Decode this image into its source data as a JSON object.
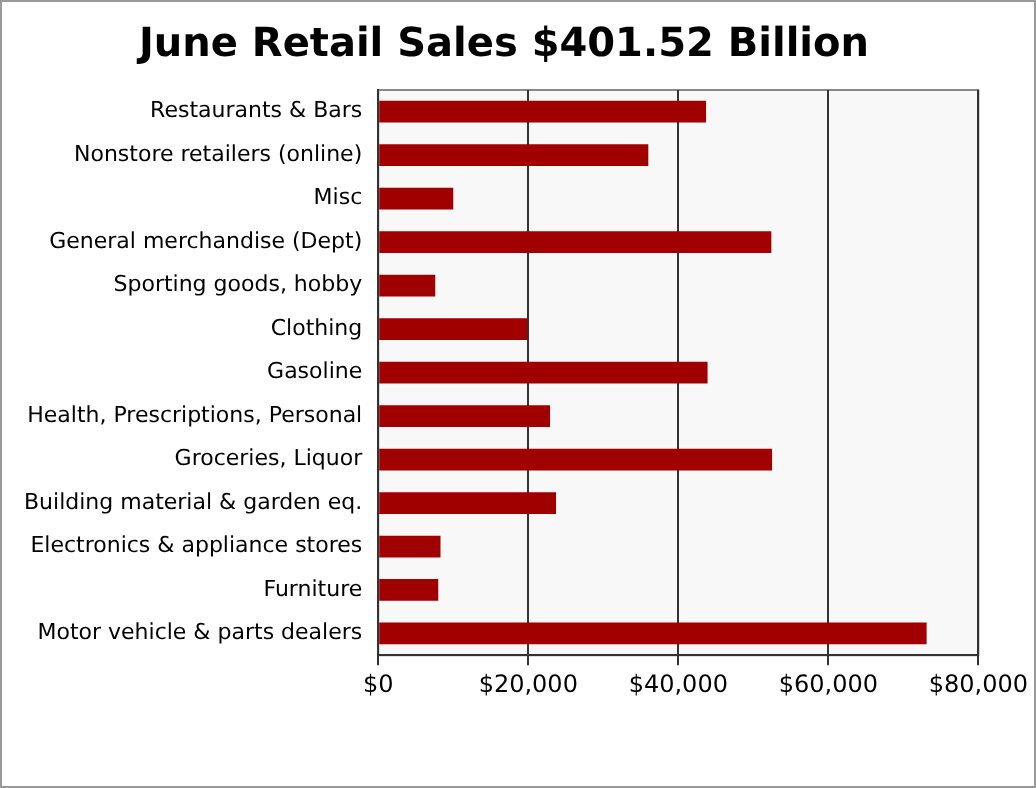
{
  "chart_data": {
    "type": "bar",
    "orientation": "horizontal",
    "title": "June Retail Sales $401.52 Billion",
    "categories": [
      "Restaurants & Bars",
      "Nonstore retailers (online)",
      "Misc",
      "General merchandise (Dept)",
      "Sporting goods, hobby",
      "Clothing",
      "Gasoline",
      "Health, Prescriptions, Personal",
      "Groceries, Liquor",
      "Building material & garden eq.",
      "Electronics & appliance stores",
      "Furniture",
      "Motor vehicle & parts dealers"
    ],
    "values": [
      43700,
      36000,
      10000,
      52400,
      7600,
      19900,
      43900,
      22900,
      52500,
      23700,
      8300,
      8000,
      73100
    ],
    "color": "#a00000",
    "xlim": [
      0,
      80000
    ],
    "xticks": [
      {
        "value": 0,
        "label": "$0"
      },
      {
        "value": 20000,
        "label": "$20,000"
      },
      {
        "value": 40000,
        "label": "$40,000"
      },
      {
        "value": 60000,
        "label": "$60,000"
      },
      {
        "value": 80000,
        "label": "$80,000"
      }
    ],
    "grid": "x",
    "legend": false
  }
}
